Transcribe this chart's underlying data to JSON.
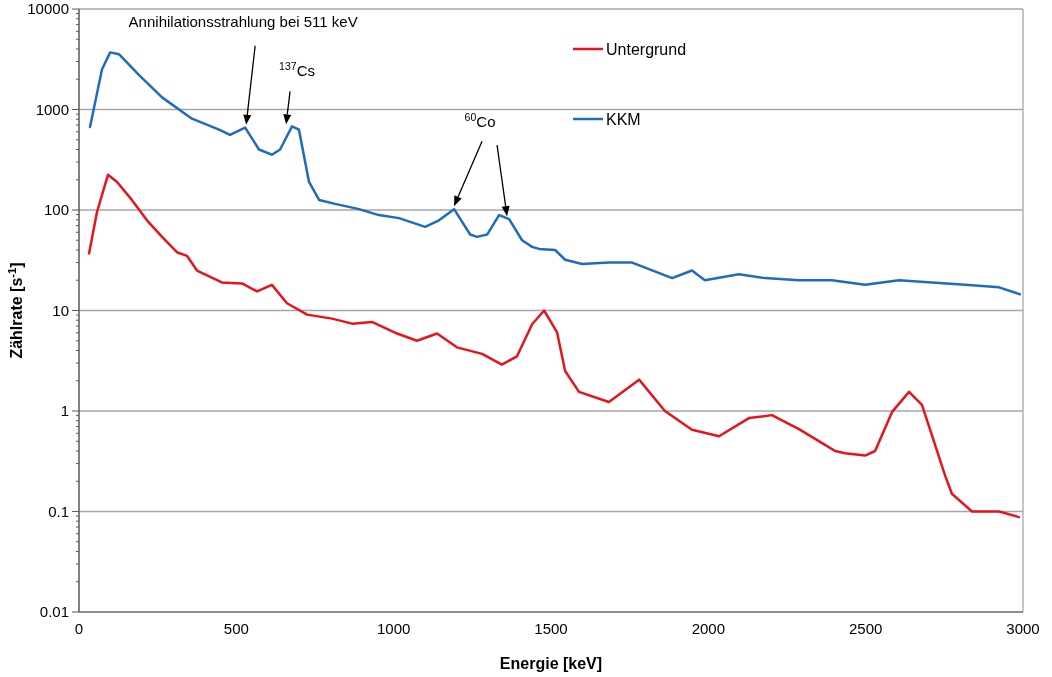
{
  "chart_data": {
    "type": "line",
    "xlabel": "Energie [keV]",
    "ylabel": "Zählrate [s$^{-1}$]",
    "log": "y",
    "xlim": [
      0,
      3000
    ],
    "xticks": [
      0,
      500,
      1000,
      1500,
      2000,
      2500,
      3000
    ],
    "ylim": [
      0.01,
      10000
    ],
    "yticks": [
      0.01,
      0.1,
      1,
      10,
      100,
      1000,
      10000
    ],
    "grid": "y",
    "legend": "top right",
    "marker": "none",
    "line_style": "solid",
    "series": [
      {
        "name": "Untergrund",
        "color": "#e8141c",
        "x": [
          32,
          57,
          92,
          121,
          168,
          216,
          264,
          311,
          343,
          375,
          454,
          518,
          566,
          613,
          661,
          725,
          804,
          868,
          931,
          1011,
          1074,
          1138,
          1201,
          1281,
          1344,
          1392,
          1440,
          1478,
          1519,
          1545,
          1589,
          1684,
          1780,
          1862,
          1948,
          2034,
          2129,
          2202,
          2288,
          2371,
          2403,
          2434,
          2498,
          2530,
          2584,
          2638,
          2679,
          2711,
          2752,
          2774,
          2838,
          2924,
          2987
        ],
        "values": [
          37,
          95,
          224,
          190,
          126,
          79,
          54,
          38,
          35,
          25,
          19,
          18.6,
          15.5,
          18,
          11.8,
          9.1,
          8.3,
          7.4,
          7.7,
          5.9,
          5.0,
          5.9,
          4.3,
          3.7,
          2.9,
          3.5,
          7.3,
          10,
          6.1,
          2.5,
          1.55,
          1.23,
          2.05,
          1.0,
          0.65,
          0.56,
          0.85,
          0.91,
          0.66,
          0.46,
          0.4,
          0.38,
          0.36,
          0.4,
          0.98,
          1.55,
          1.15,
          0.57,
          0.23,
          0.15,
          0.1,
          0.1,
          0.088
        ]
      },
      {
        "name": "KKM",
        "color": "#1f6bbf",
        "x": [
          35,
          73,
          99,
          127,
          191,
          264,
          359,
          445,
          480,
          528,
          572,
          613,
          639,
          677,
          699,
          731,
          763,
          814,
          890,
          953,
          1017,
          1100,
          1144,
          1192,
          1243,
          1265,
          1297,
          1335,
          1367,
          1408,
          1440,
          1462,
          1513,
          1545,
          1599,
          1684,
          1758,
          1885,
          1948,
          1989,
          2097,
          2180,
          2288,
          2393,
          2498,
          2606,
          2711,
          2816,
          2924,
          2990
        ],
        "values": [
          670,
          2500,
          3700,
          3550,
          2200,
          1320,
          810,
          630,
          560,
          660,
          400,
          355,
          400,
          680,
          630,
          190,
          126,
          115,
          102,
          89,
          83,
          68,
          79,
          102,
          57,
          54,
          57,
          89,
          81,
          50,
          43,
          41,
          40,
          32,
          29,
          30,
          30,
          21,
          25,
          20,
          23,
          21,
          20,
          20,
          18,
          20,
          19,
          18,
          17,
          14.5
        ]
      }
    ],
    "annotations": [
      "Annihilationsstrahlung bei 511 keV",
      "$^{137}$Cs",
      "$^{60}$Co"
    ]
  }
}
